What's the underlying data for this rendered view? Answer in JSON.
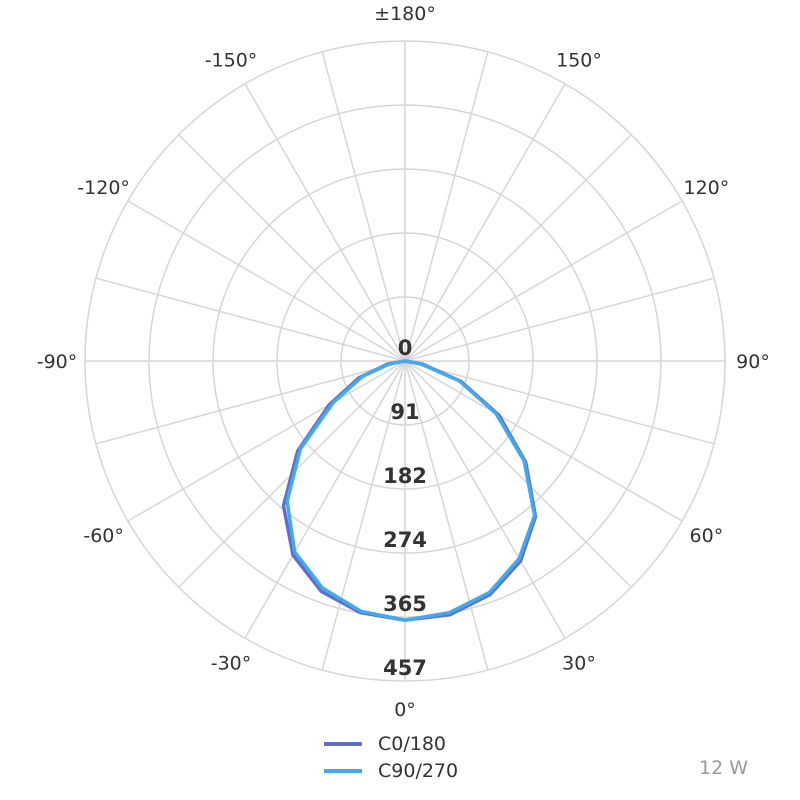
{
  "chart_data": {
    "type": "polar-line",
    "angle_unit": "degrees",
    "angle_labels": [
      "0°",
      "30°",
      "60°",
      "90°",
      "120°",
      "150°",
      "±180°",
      "-150°",
      "-120°",
      "-90°",
      "-60°",
      "-30°"
    ],
    "angle_label_angles": [
      0,
      30,
      60,
      90,
      120,
      150,
      180,
      -150,
      -120,
      -90,
      -60,
      -30
    ],
    "radial_ticks": [
      0,
      91,
      182,
      274,
      365,
      457
    ],
    "radial_max": 457,
    "grid": true,
    "grid_angle_step": 15,
    "series": [
      {
        "name": "C0/180",
        "color": "#5f6fc7",
        "points": [
          [
            -90,
            0
          ],
          [
            -80,
            25
          ],
          [
            -70,
            70
          ],
          [
            -60,
            125
          ],
          [
            -50,
            200
          ],
          [
            -40,
            270
          ],
          [
            -30,
            320
          ],
          [
            -20,
            350
          ],
          [
            -10,
            365
          ],
          [
            0,
            370
          ],
          [
            10,
            368
          ],
          [
            20,
            355
          ],
          [
            30,
            330
          ],
          [
            40,
            290
          ],
          [
            50,
            225
          ],
          [
            60,
            155
          ],
          [
            70,
            85
          ],
          [
            80,
            25
          ],
          [
            90,
            0
          ]
        ]
      },
      {
        "name": "C90/270",
        "color": "#43a9ef",
        "points": [
          [
            -90,
            0
          ],
          [
            -80,
            22
          ],
          [
            -70,
            65
          ],
          [
            -60,
            118
          ],
          [
            -50,
            195
          ],
          [
            -40,
            262
          ],
          [
            -30,
            315
          ],
          [
            -20,
            345
          ],
          [
            -10,
            363
          ],
          [
            0,
            370
          ],
          [
            10,
            365
          ],
          [
            20,
            352
          ],
          [
            30,
            326
          ],
          [
            40,
            288
          ],
          [
            50,
            222
          ],
          [
            60,
            150
          ],
          [
            70,
            82
          ],
          [
            80,
            22
          ],
          [
            90,
            0
          ]
        ]
      }
    ],
    "legend": {
      "placement": "bottom-center"
    },
    "annotation": "12 W"
  }
}
